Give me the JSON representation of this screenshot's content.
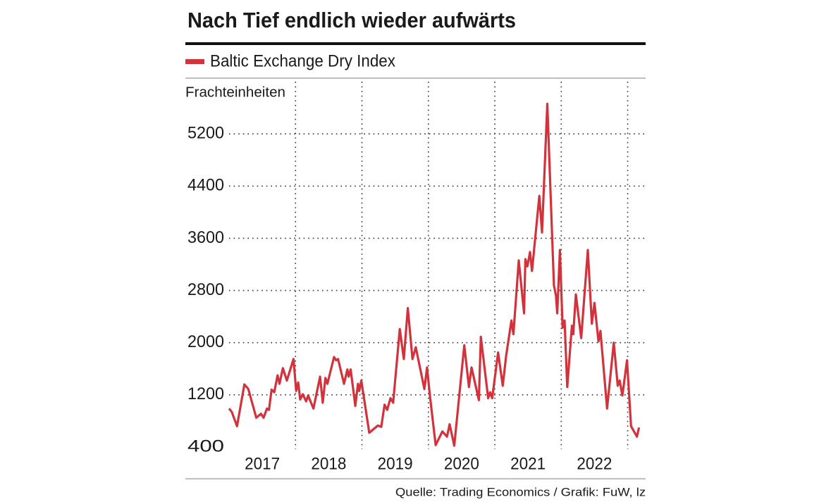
{
  "chart_data": {
    "type": "line",
    "title": "Nach Tief endlich wieder aufwärts",
    "y_label": "Frachteinheiten",
    "source": "Quelle: Trading Economics / Grafik: FuW, lz",
    "x": [
      2017.0,
      2017.04,
      2017.12,
      2017.23,
      2017.29,
      2017.41,
      2017.48,
      2017.52,
      2017.57,
      2017.6,
      2017.64,
      2017.68,
      2017.73,
      2017.76,
      2017.81,
      2017.87,
      2017.97,
      2018.01,
      2018.04,
      2018.07,
      2018.11,
      2018.16,
      2018.19,
      2018.27,
      2018.37,
      2018.41,
      2018.45,
      2018.48,
      2018.58,
      2018.61,
      2018.64,
      2018.73,
      2018.78,
      2018.8,
      2018.83,
      2018.9,
      2018.94,
      2018.96,
      2018.99,
      2019.11,
      2019.24,
      2019.29,
      2019.34,
      2019.38,
      2019.43,
      2019.47,
      2019.57,
      2019.63,
      2019.69,
      2019.76,
      2019.81,
      2019.94,
      2019.98,
      2020.02,
      2020.11,
      2020.21,
      2020.28,
      2020.32,
      2020.39,
      2020.54,
      2020.61,
      2020.65,
      2020.76,
      2020.79,
      2020.9,
      2020.93,
      2020.96,
      2021.05,
      2021.12,
      2021.17,
      2021.25,
      2021.28,
      2021.36,
      2021.44,
      2021.46,
      2021.49,
      2021.53,
      2021.56,
      2021.67,
      2021.71,
      2021.79,
      2021.89,
      2021.92,
      2021.94,
      2021.98,
      2022.02,
      2022.05,
      2022.09,
      2022.16,
      2022.18,
      2022.22,
      2022.3,
      2022.4,
      2022.46,
      2022.5,
      2022.56,
      2022.59,
      2022.69,
      2022.79,
      2022.85,
      2022.88,
      2022.92,
      2022.99,
      2023.05,
      2023.14,
      2023.17
    ],
    "series": [
      {
        "name": "Baltic Exchange Dry Index",
        "color": "#d2323c",
        "values": [
          990,
          940,
          720,
          1360,
          1290,
          850,
          910,
          850,
          990,
          970,
          1280,
          1240,
          1500,
          1370,
          1610,
          1420,
          1750,
          1260,
          1390,
          1130,
          1210,
          1100,
          1190,
          990,
          1480,
          1080,
          1460,
          1370,
          1780,
          1730,
          1750,
          1370,
          1590,
          1480,
          1590,
          1030,
          1370,
          1260,
          1420,
          620,
          730,
          710,
          1050,
          970,
          1150,
          1080,
          2210,
          1750,
          2530,
          1750,
          1930,
          1290,
          1620,
          1210,
          430,
          640,
          560,
          750,
          420,
          1960,
          1320,
          1620,
          1120,
          2090,
          1150,
          1240,
          1150,
          1850,
          1340,
          1800,
          2340,
          2130,
          3260,
          2450,
          3280,
          3170,
          3390,
          3100,
          4250,
          3690,
          5660,
          2880,
          2720,
          2450,
          3420,
          2230,
          2340,
          1320,
          2260,
          2130,
          2740,
          2070,
          3420,
          2290,
          2610,
          2020,
          2180,
          990,
          2000,
          1340,
          1420,
          1190,
          1730,
          720,
          560,
          700
        ]
      }
    ],
    "xlim": [
      2017,
      2023.27
    ],
    "xticks": [
      {
        "value": 2017.5,
        "label": "2017"
      },
      {
        "value": 2018.5,
        "label": "2018"
      },
      {
        "value": 2019.5,
        "label": "2019"
      },
      {
        "value": 2020.5,
        "label": "2020"
      },
      {
        "value": 2021.5,
        "label": "2021"
      },
      {
        "value": 2022.5,
        "label": "2022"
      }
    ],
    "xgrid": [
      2018,
      2019,
      2020,
      2021,
      2022,
      2023
    ],
    "ylim": [
      400,
      6000
    ],
    "yticks": [
      400,
      1200,
      2000,
      2800,
      3600,
      4400,
      5200
    ],
    "grid": true
  }
}
